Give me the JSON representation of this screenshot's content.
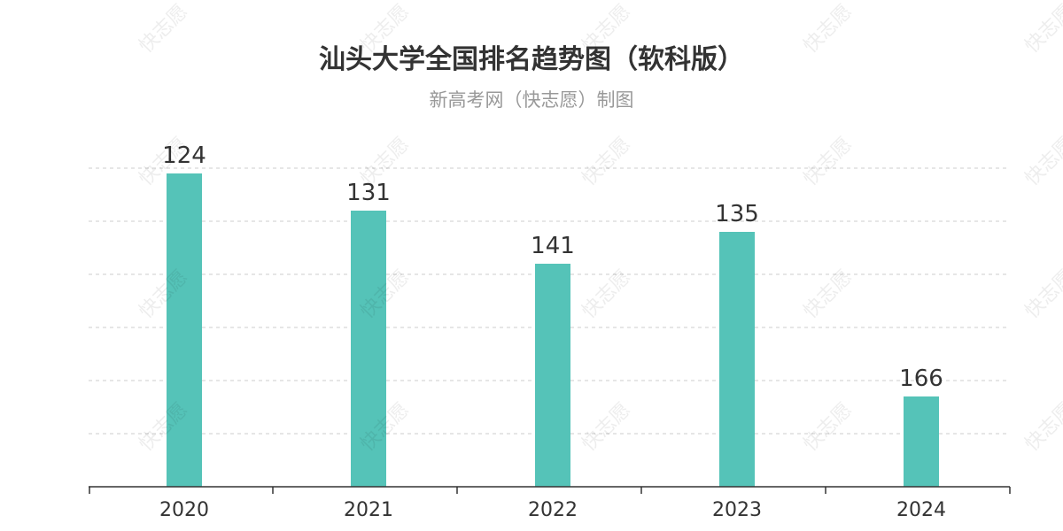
{
  "title": "汕头大学全国排名趋势图（软科版）",
  "subtitle": "新高考网（快志愿）制图",
  "watermark": "快志愿",
  "colors": {
    "bar": "#55c3b8",
    "grid": "#cccccc",
    "axis": "#333333",
    "label": "#333333"
  },
  "chart_data": {
    "type": "bar",
    "categories": [
      "2020",
      "2021",
      "2022",
      "2023",
      "2024"
    ],
    "values": [
      124,
      131,
      141,
      135,
      166
    ],
    "data_labels": [
      "124",
      "131",
      "141",
      "135",
      "166"
    ],
    "y_inverted": true,
    "ylim": [
      100,
      180
    ],
    "grid": true,
    "grid_style": "dashed",
    "show_y_tick_labels": false,
    "legend": "none"
  }
}
